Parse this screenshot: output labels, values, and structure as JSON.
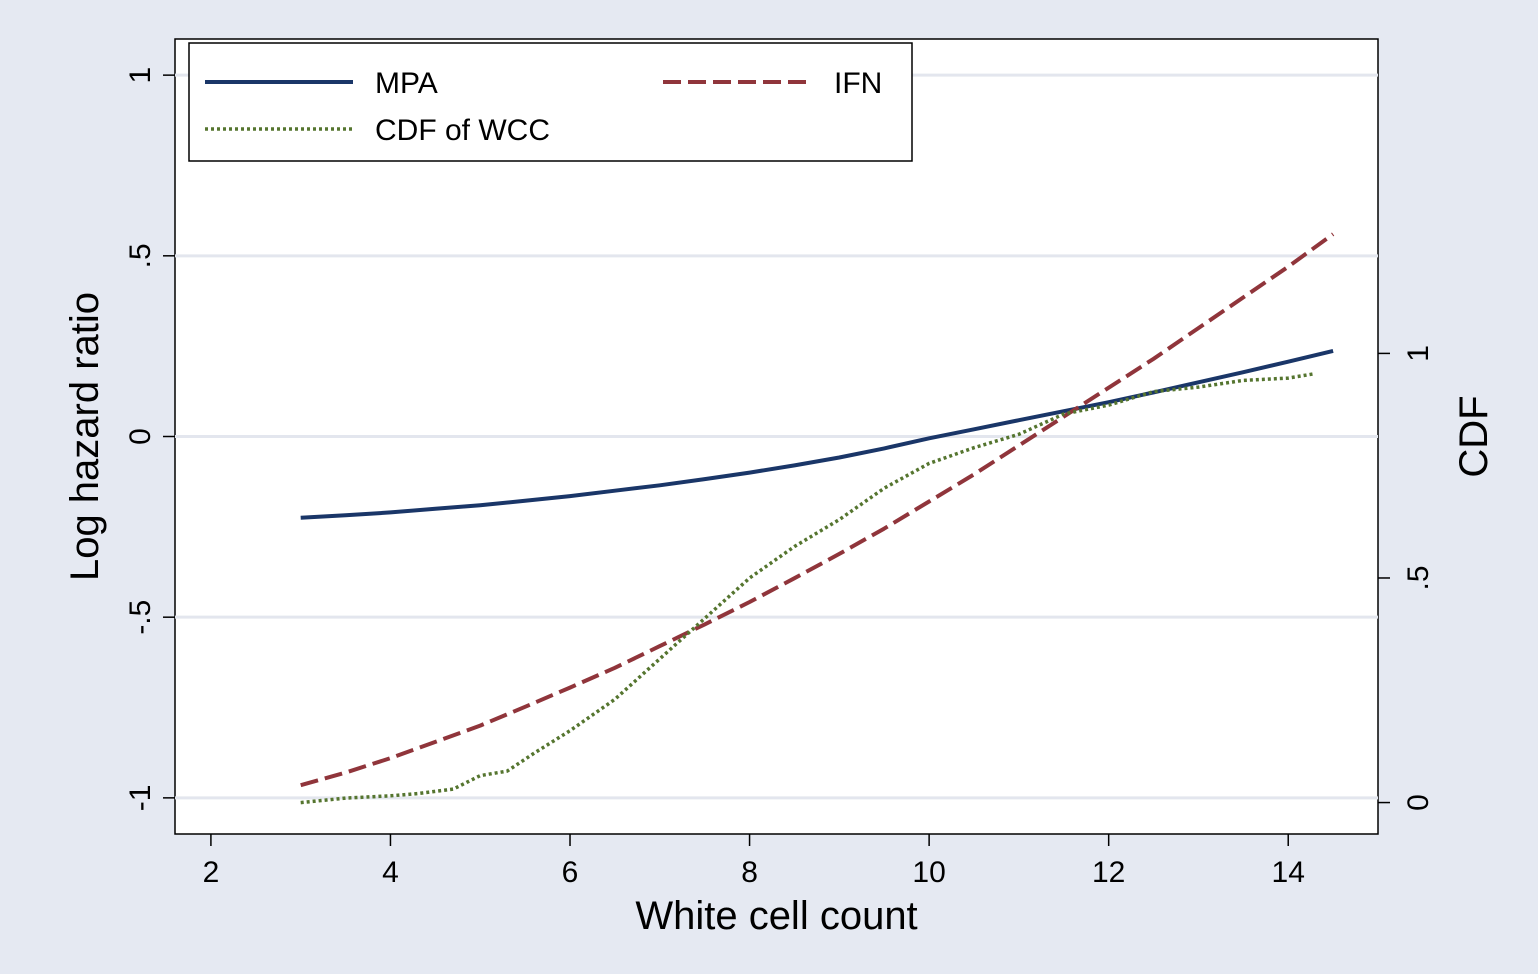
{
  "chart_data": {
    "type": "line",
    "xlabel": "White cell count",
    "ylabel": "Log hazard ratio",
    "y2label": "CDF",
    "xlim": [
      1.6,
      15.0
    ],
    "ylim": [
      -1.1,
      1.1
    ],
    "y2lim": [
      -0.07,
      1.7
    ],
    "x_ticks": [
      2,
      4,
      6,
      8,
      10,
      12,
      14
    ],
    "x_tick_labels": [
      "2",
      "4",
      "6",
      "8",
      "10",
      "12",
      "14"
    ],
    "y_ticks": [
      -1,
      -0.5,
      0,
      0.5,
      1
    ],
    "y_tick_labels": [
      "-1",
      "-.5",
      "0",
      ".5",
      "1"
    ],
    "y2_ticks": [
      0,
      0.5,
      1
    ],
    "y2_tick_labels": [
      "0",
      ".5",
      "1"
    ],
    "grid": true,
    "legend_position": "top-left",
    "series": [
      {
        "name": "MPA",
        "axis": "left",
        "color": "#1a3668",
        "style": "solid",
        "x": [
          3.0,
          3.5,
          4.0,
          4.5,
          5.0,
          5.5,
          6.0,
          6.5,
          7.0,
          7.5,
          8.0,
          8.5,
          9.0,
          9.5,
          10.0,
          10.5,
          11.0,
          11.5,
          12.0,
          12.5,
          13.0,
          13.5,
          14.0,
          14.5
        ],
        "y": [
          -0.225,
          -0.218,
          -0.21,
          -0.2,
          -0.19,
          -0.178,
          -0.165,
          -0.15,
          -0.135,
          -0.118,
          -0.1,
          -0.08,
          -0.058,
          -0.033,
          -0.005,
          0.02,
          0.045,
          0.07,
          0.095,
          0.122,
          0.15,
          0.178,
          0.207,
          0.237
        ]
      },
      {
        "name": "IFN",
        "axis": "left",
        "color": "#90353b",
        "style": "dashed",
        "x": [
          3.0,
          3.5,
          4.0,
          4.5,
          5.0,
          5.5,
          6.0,
          6.5,
          7.0,
          7.5,
          8.0,
          8.5,
          9.0,
          9.5,
          10.0,
          10.5,
          11.0,
          11.5,
          12.0,
          12.5,
          13.0,
          13.5,
          14.0,
          14.5
        ],
        "y": [
          -0.965,
          -0.93,
          -0.89,
          -0.845,
          -0.8,
          -0.748,
          -0.695,
          -0.64,
          -0.58,
          -0.52,
          -0.458,
          -0.392,
          -0.325,
          -0.255,
          -0.18,
          -0.105,
          -0.025,
          0.055,
          0.135,
          0.215,
          0.3,
          0.385,
          0.47,
          0.56
        ]
      },
      {
        "name": "CDF of WCC",
        "axis": "right",
        "color": "#55752f",
        "style": "dotted",
        "x": [
          3.0,
          3.5,
          4.0,
          4.3,
          4.7,
          5.0,
          5.3,
          5.6,
          6.0,
          6.5,
          7.0,
          7.5,
          8.0,
          8.5,
          9.0,
          9.5,
          10.0,
          10.5,
          11.0,
          11.5,
          12.0,
          12.5,
          13.0,
          13.5,
          14.0,
          14.3
        ],
        "y": [
          0.0,
          0.01,
          0.015,
          0.02,
          0.03,
          0.06,
          0.07,
          0.11,
          0.16,
          0.23,
          0.32,
          0.41,
          0.5,
          0.57,
          0.63,
          0.7,
          0.755,
          0.79,
          0.82,
          0.865,
          0.885,
          0.915,
          0.925,
          0.94,
          0.945,
          0.955
        ]
      }
    ]
  }
}
